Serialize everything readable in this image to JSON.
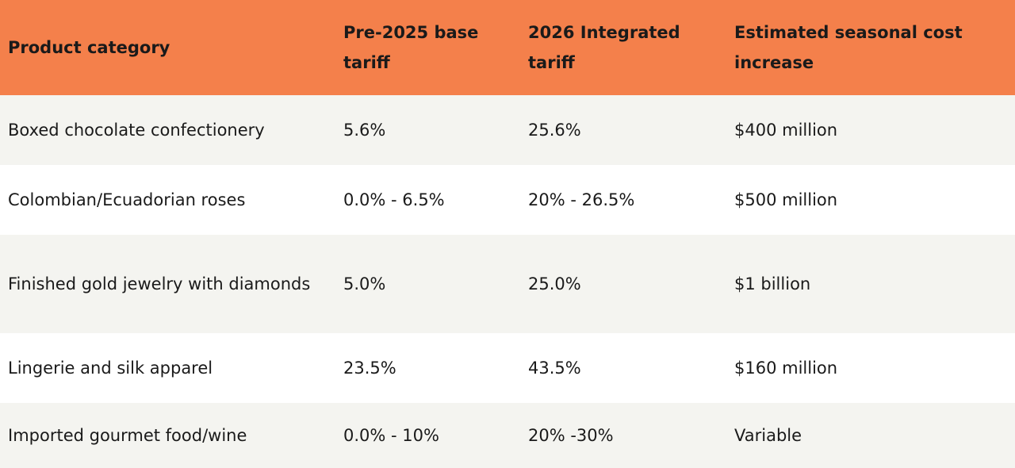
{
  "table": {
    "header": [
      "Product category",
      "Pre-2025 base tariff",
      "2026 Integrated tariff",
      "Estimated seasonal cost increase"
    ],
    "rows": [
      [
        "Boxed chocolate confectionery",
        "5.6%",
        "25.6%",
        "$400 million"
      ],
      [
        "Colombian/Ecuadorian roses",
        "0.0% - 6.5%",
        "20% - 26.5%",
        "$500 million"
      ],
      [
        "Finished gold jewelry with diamonds",
        "5.0%",
        "25.0%",
        "$1 billion"
      ],
      [
        "Lingerie and silk apparel",
        "23.5%",
        "43.5%",
        "$160 million"
      ],
      [
        "Imported gourmet food/wine",
        "0.0% - 10%",
        "20% -30%",
        "Variable"
      ]
    ]
  }
}
